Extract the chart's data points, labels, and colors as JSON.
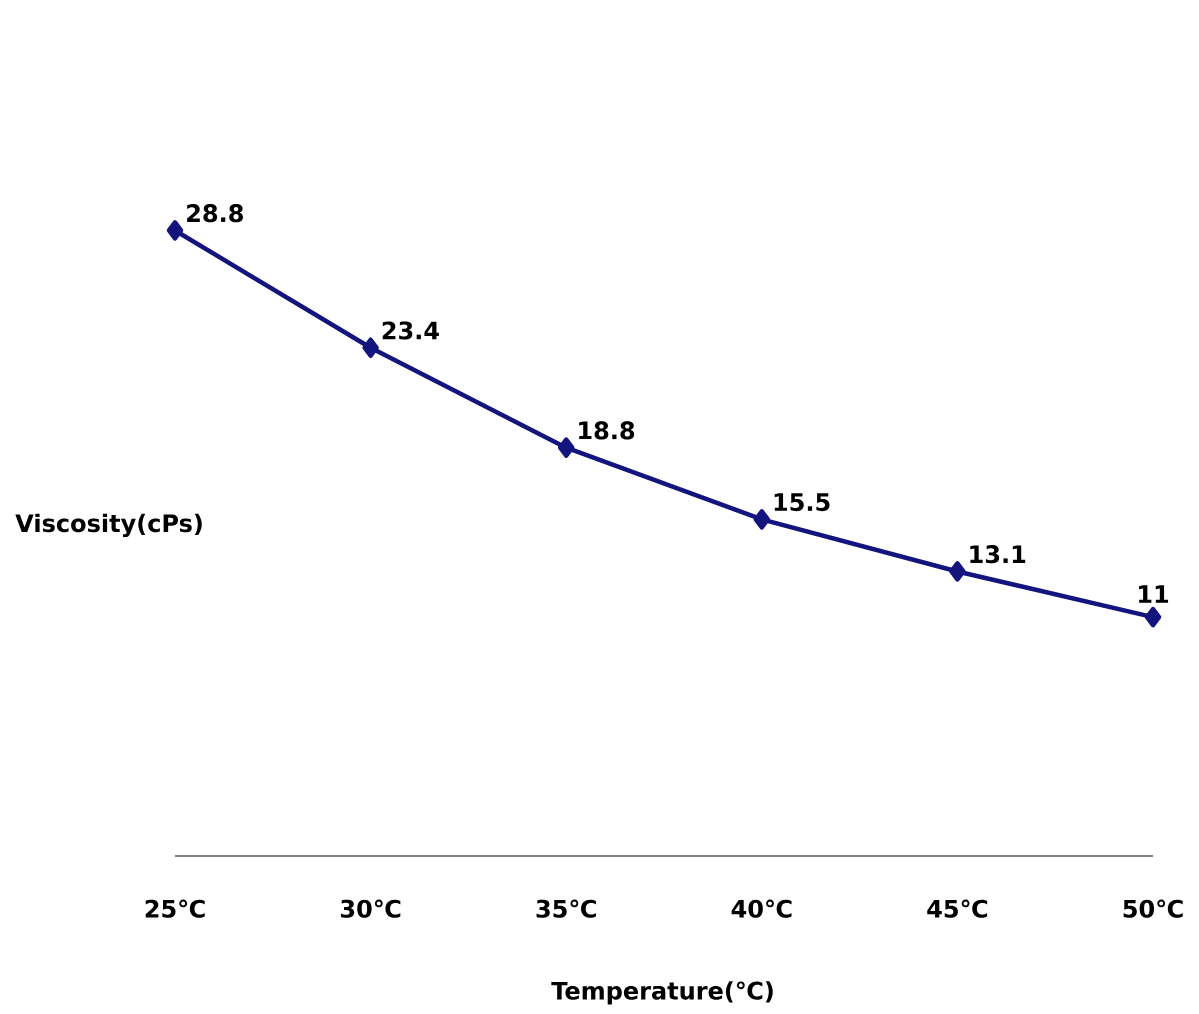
{
  "chart_data": {
    "type": "line",
    "xlabel": "Temperature(℃)",
    "ylabel": "Viscosity(cPs)",
    "categories": [
      "25℃",
      "30℃",
      "35℃",
      "40℃",
      "45℃",
      "50℃"
    ],
    "series": [
      {
        "color": "#14147f",
        "values": [
          28.8,
          23.4,
          18.8,
          15.5,
          13.1,
          11
        ]
      }
    ],
    "tick_labels": "x",
    "data_labels": true,
    "marker": "diamond",
    "line_style": "solid",
    "grid": false
  }
}
